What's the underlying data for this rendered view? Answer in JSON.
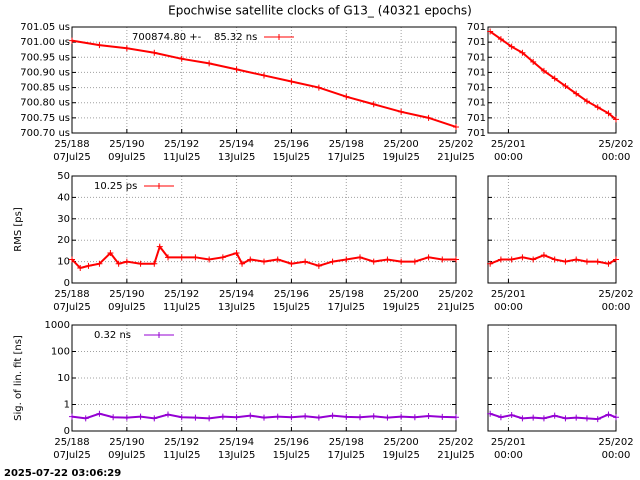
{
  "title": "Epochwise satellite clocks of G13_ (40321 epochs)",
  "timestamp": "2025-07-22 03:06:29",
  "chart_data": [
    {
      "type": "line",
      "xlim": [
        188,
        202
      ],
      "xticks": [
        {
          "value": 188,
          "label": "25/188",
          "sublabel": "07Jul25"
        },
        {
          "value": 190,
          "label": "25/190",
          "sublabel": "09Jul25"
        },
        {
          "value": 192,
          "label": "25/192",
          "sublabel": "11Jul25"
        },
        {
          "value": 194,
          "label": "25/194",
          "sublabel": "13Jul25"
        },
        {
          "value": 196,
          "label": "25/196",
          "sublabel": "15Jul25"
        },
        {
          "value": 198,
          "label": "25/198",
          "sublabel": "17Jul25"
        },
        {
          "value": 200,
          "label": "25/200",
          "sublabel": "19Jul25"
        },
        {
          "value": 202,
          "label": "25/202",
          "sublabel": "21Jul25"
        }
      ],
      "ylim": [
        700.7,
        701.05
      ],
      "yticks": [
        {
          "value": 700.7,
          "label": "700.70 us"
        },
        {
          "value": 700.75,
          "label": "700.75 us"
        },
        {
          "value": 700.8,
          "label": "700.80 us"
        },
        {
          "value": 700.85,
          "label": "700.85 us"
        },
        {
          "value": 700.9,
          "label": "700.90 us"
        },
        {
          "value": 700.95,
          "label": "700.95 us"
        },
        {
          "value": 701.0,
          "label": "701.00 us"
        },
        {
          "value": 701.05,
          "label": "701.05 us"
        }
      ],
      "grid": true,
      "series": [
        {
          "name": "700874.80 +-    85.32 ns",
          "color": "#ff0000",
          "x": [
            188,
            189,
            190,
            191,
            192,
            193,
            194,
            195,
            196,
            197,
            198,
            199,
            200,
            201,
            202
          ],
          "values": [
            701.005,
            700.99,
            700.98,
            700.965,
            700.945,
            700.93,
            700.91,
            700.89,
            700.87,
            700.85,
            700.82,
            700.795,
            700.77,
            700.75,
            700.72
          ]
        }
      ]
    },
    {
      "type": "line",
      "xlim": [
        200.81,
        202
      ],
      "xticks": [
        {
          "value": 201,
          "label": "25/201",
          "sublabel": "00:00"
        },
        {
          "value": 202,
          "label": "25/202",
          "sublabel": "00:00"
        }
      ],
      "ylim": [
        700.7195,
        700.7265
      ],
      "yticks": [
        {
          "value": 700.7195,
          "label": "701"
        },
        {
          "value": 700.7205,
          "label": "701"
        },
        {
          "value": 700.7215,
          "label": "701"
        },
        {
          "value": 700.7225,
          "label": "701"
        },
        {
          "value": 700.7235,
          "label": "701"
        },
        {
          "value": 700.7245,
          "label": "701"
        },
        {
          "value": 700.7255,
          "label": "701"
        },
        {
          "value": 700.7265,
          "label": "701"
        }
      ],
      "grid": true,
      "series": [
        {
          "color": "#ff0000",
          "x": [
            200.83,
            200.93,
            201.03,
            201.13,
            201.23,
            201.33,
            201.43,
            201.53,
            201.63,
            201.73,
            201.83,
            201.93,
            202.0
          ],
          "values": [
            700.7262,
            700.7257,
            700.7252,
            700.7248,
            700.7242,
            700.7236,
            700.7231,
            700.7226,
            700.7221,
            700.7216,
            700.7212,
            700.7208,
            700.7204
          ]
        }
      ]
    },
    {
      "type": "line",
      "xlim": [
        188,
        202
      ],
      "ylabel": "RMS [ps]",
      "xticks": [
        {
          "value": 188,
          "label": "25/188",
          "sublabel": "07Jul25"
        },
        {
          "value": 190,
          "label": "25/190",
          "sublabel": "09Jul25"
        },
        {
          "value": 192,
          "label": "25/192",
          "sublabel": "11Jul25"
        },
        {
          "value": 194,
          "label": "25/194",
          "sublabel": "13Jul25"
        },
        {
          "value": 196,
          "label": "25/196",
          "sublabel": "15Jul25"
        },
        {
          "value": 198,
          "label": "25/198",
          "sublabel": "17Jul25"
        },
        {
          "value": 200,
          "label": "25/200",
          "sublabel": "19Jul25"
        },
        {
          "value": 202,
          "label": "25/202",
          "sublabel": "21Jul25"
        }
      ],
      "ylim": [
        0,
        50
      ],
      "yticks": [
        0,
        10,
        20,
        30,
        40,
        50
      ],
      "grid": true,
      "series": [
        {
          "name": "10.25 ps",
          "color": "#ff0000",
          "x": [
            188,
            188.3,
            188.6,
            189,
            189.4,
            189.7,
            190,
            190.5,
            191,
            191.2,
            191.5,
            192,
            192.5,
            193,
            193.5,
            194,
            194.2,
            194.5,
            195,
            195.5,
            196,
            196.5,
            197,
            197.5,
            198,
            198.5,
            199,
            199.5,
            200,
            200.5,
            201,
            201.5,
            202
          ],
          "values": [
            11,
            7,
            8,
            9,
            14,
            9,
            10,
            9,
            9,
            17,
            12,
            12,
            12,
            11,
            12,
            14,
            9,
            11,
            10,
            11,
            9,
            10,
            8,
            10,
            11,
            12,
            10,
            11,
            10,
            10,
            12,
            11,
            11
          ]
        }
      ]
    },
    {
      "type": "line",
      "xlim": [
        200.81,
        202
      ],
      "xticks": [
        {
          "value": 201,
          "label": "25/201",
          "sublabel": "00:00"
        },
        {
          "value": 202,
          "label": "25/202",
          "sublabel": "00:00"
        }
      ],
      "ylim": [
        0,
        50
      ],
      "yticks": [
        0,
        10,
        20,
        30,
        40,
        50
      ],
      "grid": true,
      "hide_ytick_labels": true,
      "series": [
        {
          "color": "#ff0000",
          "x": [
            200.83,
            200.93,
            201.03,
            201.13,
            201.23,
            201.33,
            201.43,
            201.53,
            201.63,
            201.73,
            201.83,
            201.93,
            202.0
          ],
          "values": [
            9,
            11,
            11,
            12,
            11,
            13,
            11,
            10,
            11,
            10,
            10,
            9,
            11
          ]
        }
      ]
    },
    {
      "type": "line",
      "xlim": [
        188,
        202
      ],
      "ylabel": "Sig. of lin. fit [ns]",
      "log": true,
      "xticks": [
        {
          "value": 188,
          "label": "25/188",
          "sublabel": "07Jul25"
        },
        {
          "value": 190,
          "label": "25/190",
          "sublabel": "09Jul25"
        },
        {
          "value": 192,
          "label": "25/192",
          "sublabel": "11Jul25"
        },
        {
          "value": 194,
          "label": "25/194",
          "sublabel": "13Jul25"
        },
        {
          "value": 196,
          "label": "25/196",
          "sublabel": "15Jul25"
        },
        {
          "value": 198,
          "label": "25/198",
          "sublabel": "17Jul25"
        },
        {
          "value": 200,
          "label": "25/200",
          "sublabel": "19Jul25"
        },
        {
          "value": 202,
          "label": "25/202",
          "sublabel": "21Jul25"
        }
      ],
      "ylim": [
        0.1,
        1000
      ],
      "yticks": [
        {
          "value": 0.1,
          "label": "0"
        },
        1,
        10,
        100,
        1000
      ],
      "grid": true,
      "series": [
        {
          "name": "0.32 ns",
          "color": "#9400d3",
          "x": [
            188,
            188.5,
            189,
            189.5,
            190,
            190.5,
            191,
            191.5,
            192,
            192.5,
            193,
            193.5,
            194,
            194.5,
            195,
            195.5,
            196,
            196.5,
            197,
            197.5,
            198,
            198.5,
            199,
            199.5,
            200,
            200.5,
            201,
            201.5,
            202
          ],
          "values": [
            0.35,
            0.3,
            0.45,
            0.33,
            0.32,
            0.35,
            0.3,
            0.42,
            0.33,
            0.32,
            0.3,
            0.35,
            0.33,
            0.38,
            0.32,
            0.35,
            0.33,
            0.36,
            0.32,
            0.38,
            0.34,
            0.33,
            0.36,
            0.32,
            0.35,
            0.33,
            0.37,
            0.34,
            0.33
          ]
        }
      ]
    },
    {
      "type": "line",
      "xlim": [
        200.81,
        202
      ],
      "log": true,
      "xticks": [
        {
          "value": 201,
          "label": "25/201",
          "sublabel": "00:00"
        },
        {
          "value": 202,
          "label": "25/202",
          "sublabel": "00:00"
        }
      ],
      "ylim": [
        0.1,
        1000
      ],
      "yticks": [
        0.1,
        1,
        10,
        100,
        1000
      ],
      "grid": true,
      "hide_ytick_labels": true,
      "series": [
        {
          "color": "#9400d3",
          "x": [
            200.83,
            200.93,
            201.03,
            201.13,
            201.23,
            201.33,
            201.43,
            201.53,
            201.63,
            201.73,
            201.83,
            201.93,
            202.0
          ],
          "values": [
            0.45,
            0.33,
            0.4,
            0.3,
            0.32,
            0.3,
            0.38,
            0.3,
            0.32,
            0.3,
            0.28,
            0.42,
            0.33
          ]
        }
      ]
    }
  ]
}
